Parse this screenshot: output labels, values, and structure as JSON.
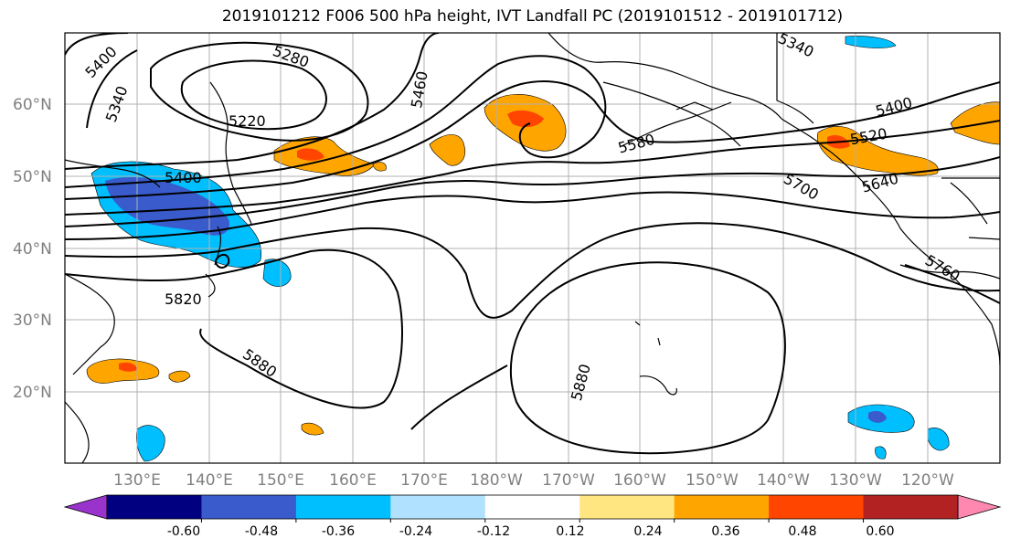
{
  "title": "2019101212 F006 500 hPa height, IVT Landfall PC (2019101512 - 2019101712)",
  "lat_labels": [
    "60°N",
    "50°N",
    "40°N",
    "30°N",
    "20°N"
  ],
  "lon_labels": [
    "130°E",
    "140°E",
    "150°E",
    "160°E",
    "170°E",
    "180°W",
    "170°W",
    "160°W",
    "150°W",
    "140°W",
    "130°W",
    "120°W"
  ],
  "contour_labels": [
    "5400",
    "5280",
    "5460",
    "5340",
    "5220",
    "5400",
    "5820",
    "5880",
    "5880",
    "5580",
    "5340",
    "5400",
    "5520",
    "5640",
    "5700",
    "5760"
  ],
  "colorbar": {
    "tick_labels": [
      "-0.60",
      "-0.48",
      "-0.36",
      "-0.24",
      "-0.12",
      "0.12",
      "0.24",
      "0.36",
      "0.48",
      "0.60"
    ],
    "colors": [
      "#9933cc",
      "#000080",
      "#3a5bcb",
      "#00bfff",
      "#b0e2ff",
      "#ffffff",
      "#ffe680",
      "#ffa500",
      "#ff4500",
      "#b22222",
      "#ff88b0"
    ]
  }
}
